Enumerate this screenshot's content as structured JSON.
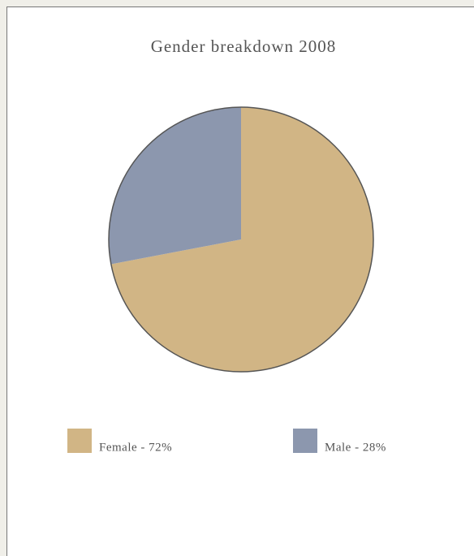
{
  "chart_data": {
    "type": "pie",
    "title": "Gender breakdown 2008",
    "values": [
      72,
      28
    ],
    "value_labels": [
      "Female - 72%",
      "Male - 28%"
    ],
    "colors": [
      "#d1b585",
      "#8c97ae"
    ]
  }
}
